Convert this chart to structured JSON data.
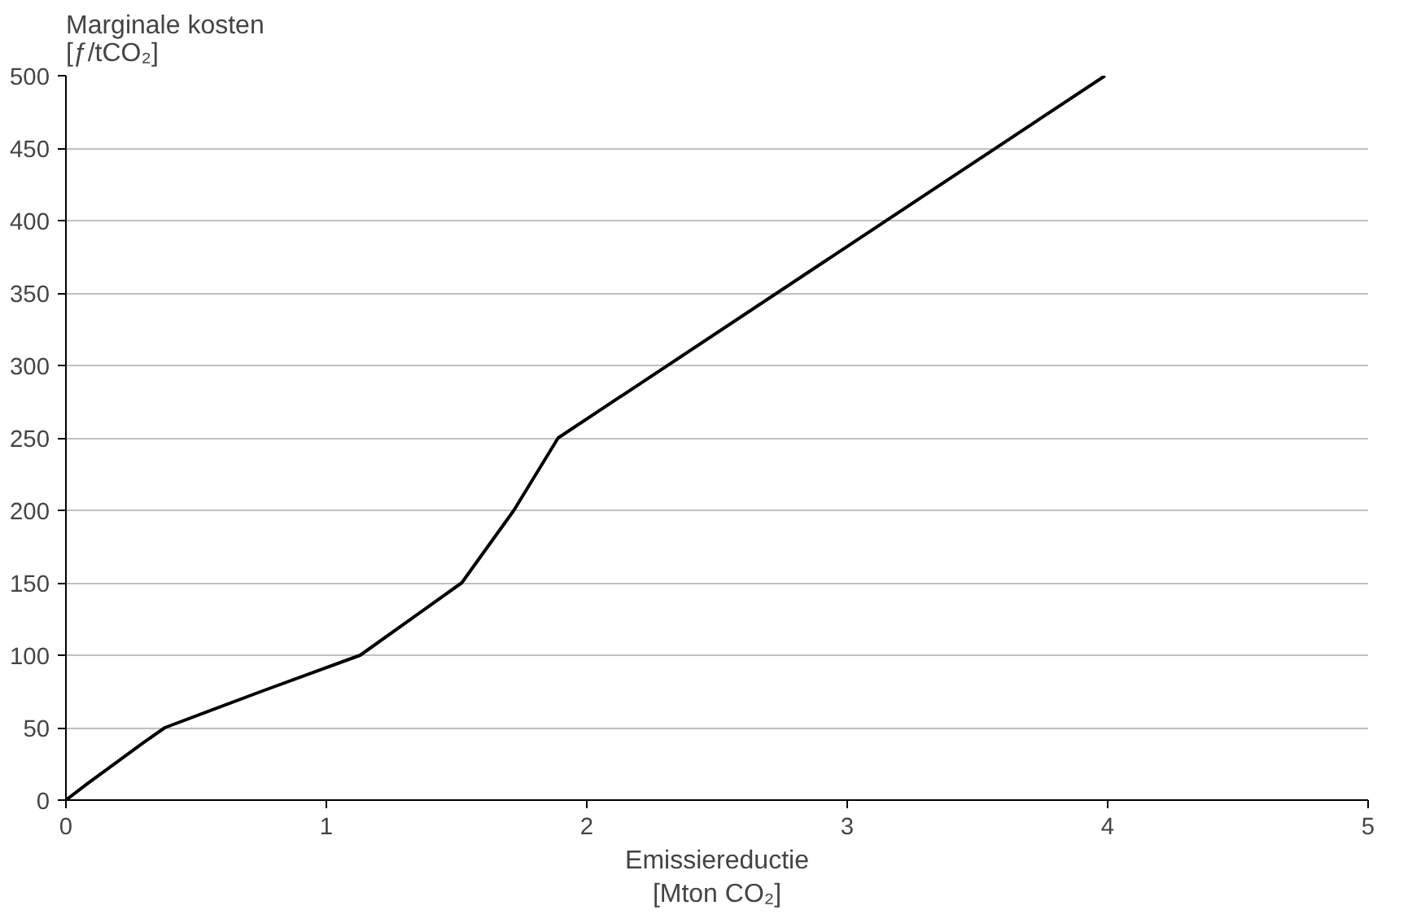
{
  "chart_data": {
    "type": "line",
    "xlabel": "Emissiereductie\n[Mton CO₂]",
    "ylabel": "Marginale kosten\n[ƒ/tCO₂]",
    "x": [
      0,
      0.08,
      0.3,
      0.38,
      0.75,
      1.13,
      1.52,
      1.72,
      1.89,
      3.99
    ],
    "series": [
      {
        "color": "#000000",
        "values": [
          0,
          11,
          40,
          50,
          75,
          100,
          150,
          200,
          250,
          500
        ]
      }
    ],
    "xlim": [
      0,
      5
    ],
    "xticks": [
      0,
      1,
      2,
      3,
      4,
      5
    ],
    "ylim": [
      0,
      500
    ],
    "yticks": [
      0,
      50,
      100,
      150,
      200,
      250,
      300,
      350,
      400,
      450,
      500
    ],
    "grid": "y",
    "marker": "none",
    "line_style": "solid"
  }
}
